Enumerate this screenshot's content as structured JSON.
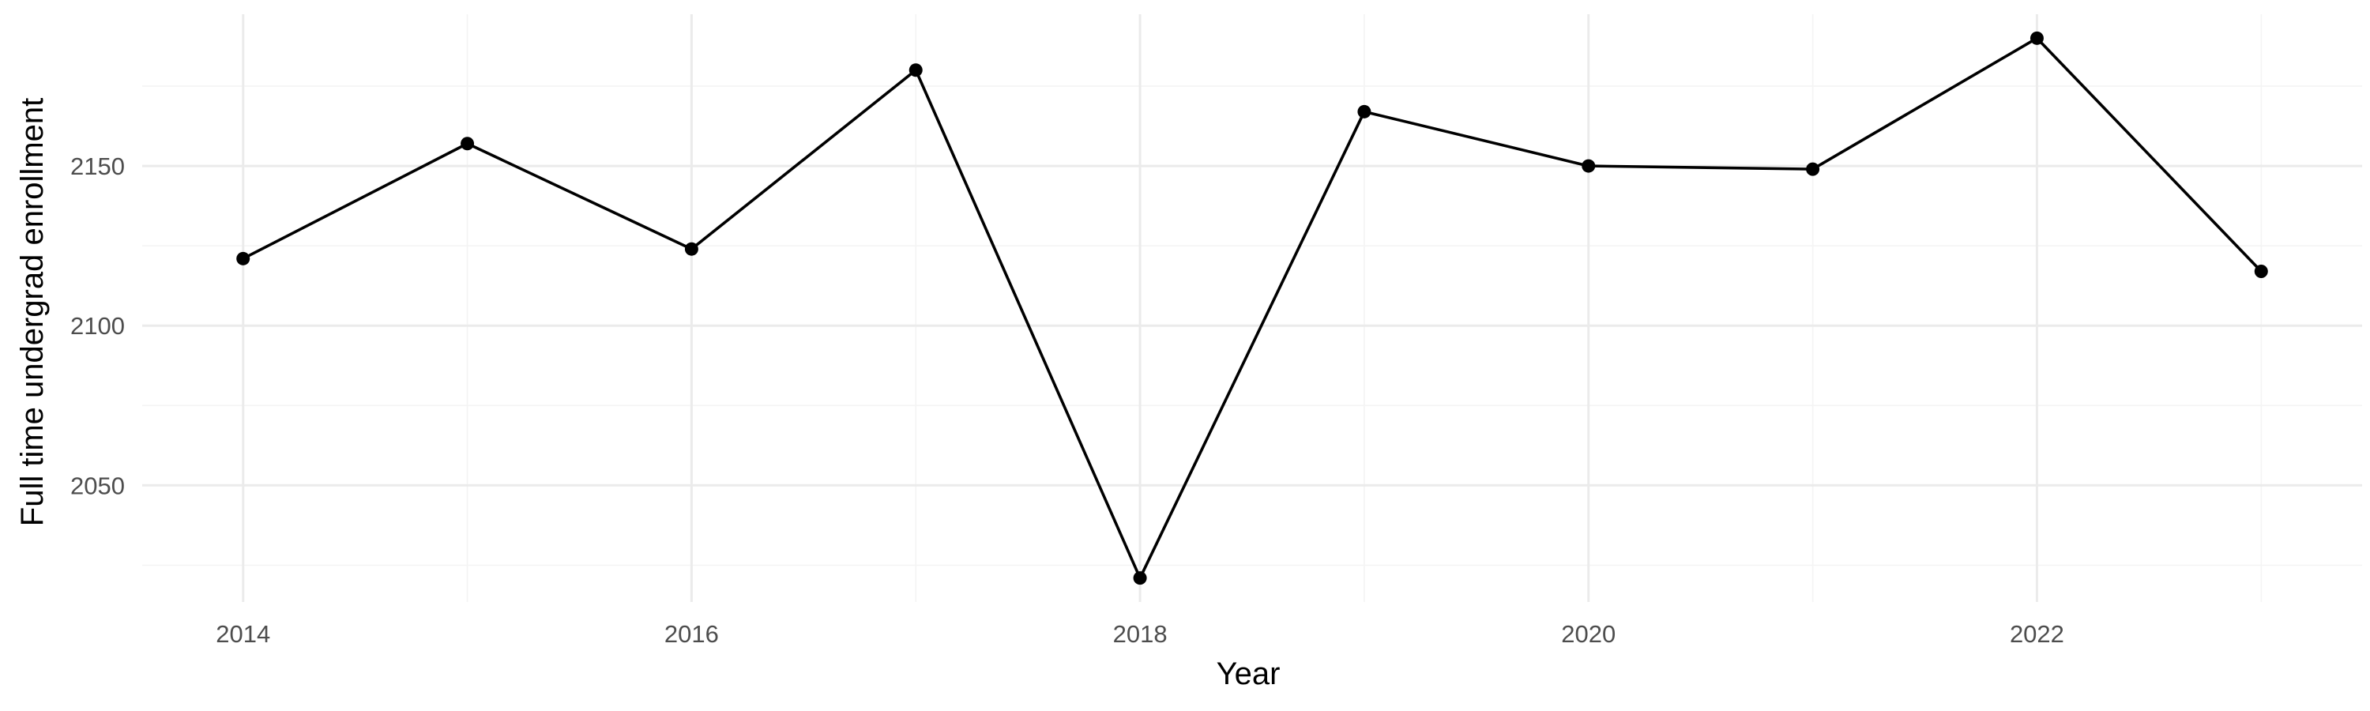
{
  "chart_data": {
    "type": "line",
    "title": "",
    "xlabel": "Year",
    "ylabel": "Full time undergrad enrollment",
    "x": [
      2014,
      2015,
      2016,
      2017,
      2018,
      2019,
      2020,
      2021,
      2022,
      2023
    ],
    "series": [
      {
        "values": [
          2121,
          2157,
          2124,
          2180,
          2021,
          2167,
          2150,
          2149,
          2190,
          2117
        ]
      }
    ],
    "xlim": [
      2013.55,
      2023.45
    ],
    "ylim": [
      2013.5,
      2197.5
    ],
    "x_ticks": [
      2014,
      2016,
      2018,
      2020,
      2022
    ],
    "x_tick_labels": [
      "2014",
      "2016",
      "2018",
      "2020",
      "2022"
    ],
    "y_ticks": [
      2050,
      2100,
      2150
    ],
    "y_tick_labels": [
      "2050",
      "2100",
      "2150"
    ],
    "grid": true,
    "legend": "none",
    "colors": {
      "line": "#000000",
      "point": "#000000",
      "grid_major": "#ebebeb",
      "grid_minor": "#f4f4f4",
      "tick_label": "#4d4d4d"
    }
  }
}
